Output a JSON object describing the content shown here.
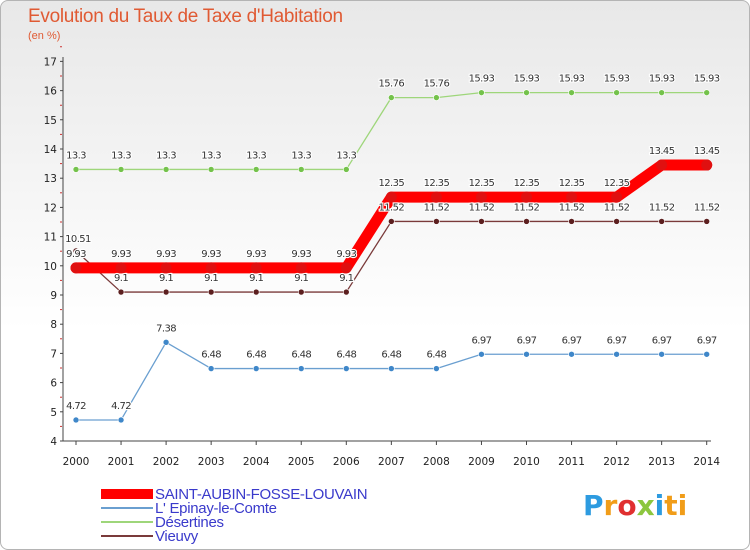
{
  "title": "Evolution du Taux de Taxe d'Habitation",
  "subtitle": "(en %)",
  "logo": {
    "text": "Proxiti",
    "letters": [
      "P",
      "r",
      "o",
      "x",
      "i",
      "ti"
    ]
  },
  "chart_data": {
    "type": "line",
    "title": "Evolution du Taux de Taxe d'Habitation",
    "ylabel": "(en %)",
    "xlabel": "",
    "ylim": [
      4,
      17
    ],
    "grid": false,
    "legend_position": "bottom-left",
    "x": [
      "2000",
      "2001",
      "2002",
      "2003",
      "2004",
      "2005",
      "2006",
      "2007",
      "2008",
      "2009",
      "2010",
      "2011",
      "2012",
      "2013",
      "2014"
    ],
    "y_ticks": [
      "4",
      "5",
      "6",
      "7",
      "8",
      "9",
      "10",
      "11",
      "12",
      "13",
      "14",
      "15",
      "16",
      "17"
    ],
    "series": [
      {
        "name": "SAINT-AUBIN-FOSSE-LOUVAIN",
        "color": "#ff0000",
        "marker_color": "#e01010",
        "values": [
          9.93,
          9.93,
          9.93,
          9.93,
          9.93,
          9.93,
          9.93,
          12.35,
          12.35,
          12.35,
          12.35,
          12.35,
          12.35,
          13.45,
          13.45
        ],
        "labels": [
          "9.93",
          "9.93",
          "9.93",
          "9.93",
          "9.93",
          "9.93",
          "9.93",
          "12.35",
          "12.35",
          "12.35",
          "12.35",
          "12.35",
          "12.35",
          "13.45",
          "13.45"
        ]
      },
      {
        "name": "L' Epinay-le-Comte",
        "color": "#6a9fd0",
        "marker_color": "#3f87c9",
        "values": [
          4.72,
          4.72,
          7.38,
          6.48,
          6.48,
          6.48,
          6.48,
          6.48,
          6.48,
          6.97,
          6.97,
          6.97,
          6.97,
          6.97,
          6.97
        ],
        "labels": [
          "4.72",
          "4.72",
          "7.38",
          "6.48",
          "6.48",
          "6.48",
          "6.48",
          "6.48",
          "6.48",
          "6.97",
          "6.97",
          "6.97",
          "6.97",
          "6.97",
          "6.97"
        ]
      },
      {
        "name": "Désertines",
        "color": "#9ed67a",
        "marker_color": "#74c24b",
        "values": [
          13.3,
          13.3,
          13.3,
          13.3,
          13.3,
          13.3,
          13.3,
          15.76,
          15.76,
          15.93,
          15.93,
          15.93,
          15.93,
          15.93,
          15.93
        ],
        "labels": [
          "13.3",
          "13.3",
          "13.3",
          "13.3",
          "13.3",
          "13.3",
          "13.3",
          "15.76",
          "15.76",
          "15.93",
          "15.93",
          "15.93",
          "15.93",
          "15.93",
          "15.93"
        ]
      },
      {
        "name": "Vieuvy",
        "color": "#7a3a3a",
        "marker_color": "#5c1f1f",
        "values": [
          10.51,
          9.1,
          9.1,
          9.1,
          9.1,
          9.1,
          9.1,
          11.52,
          11.52,
          11.52,
          11.52,
          11.52,
          11.52,
          11.52,
          11.52
        ],
        "labels": [
          "10.51",
          "9.1",
          "9.1",
          "9.1",
          "9.1",
          "9.1",
          "9.1",
          "11.52",
          "11.52",
          "11.52",
          "11.52",
          "11.52",
          "11.52",
          "11.52",
          "11.52"
        ]
      }
    ]
  }
}
